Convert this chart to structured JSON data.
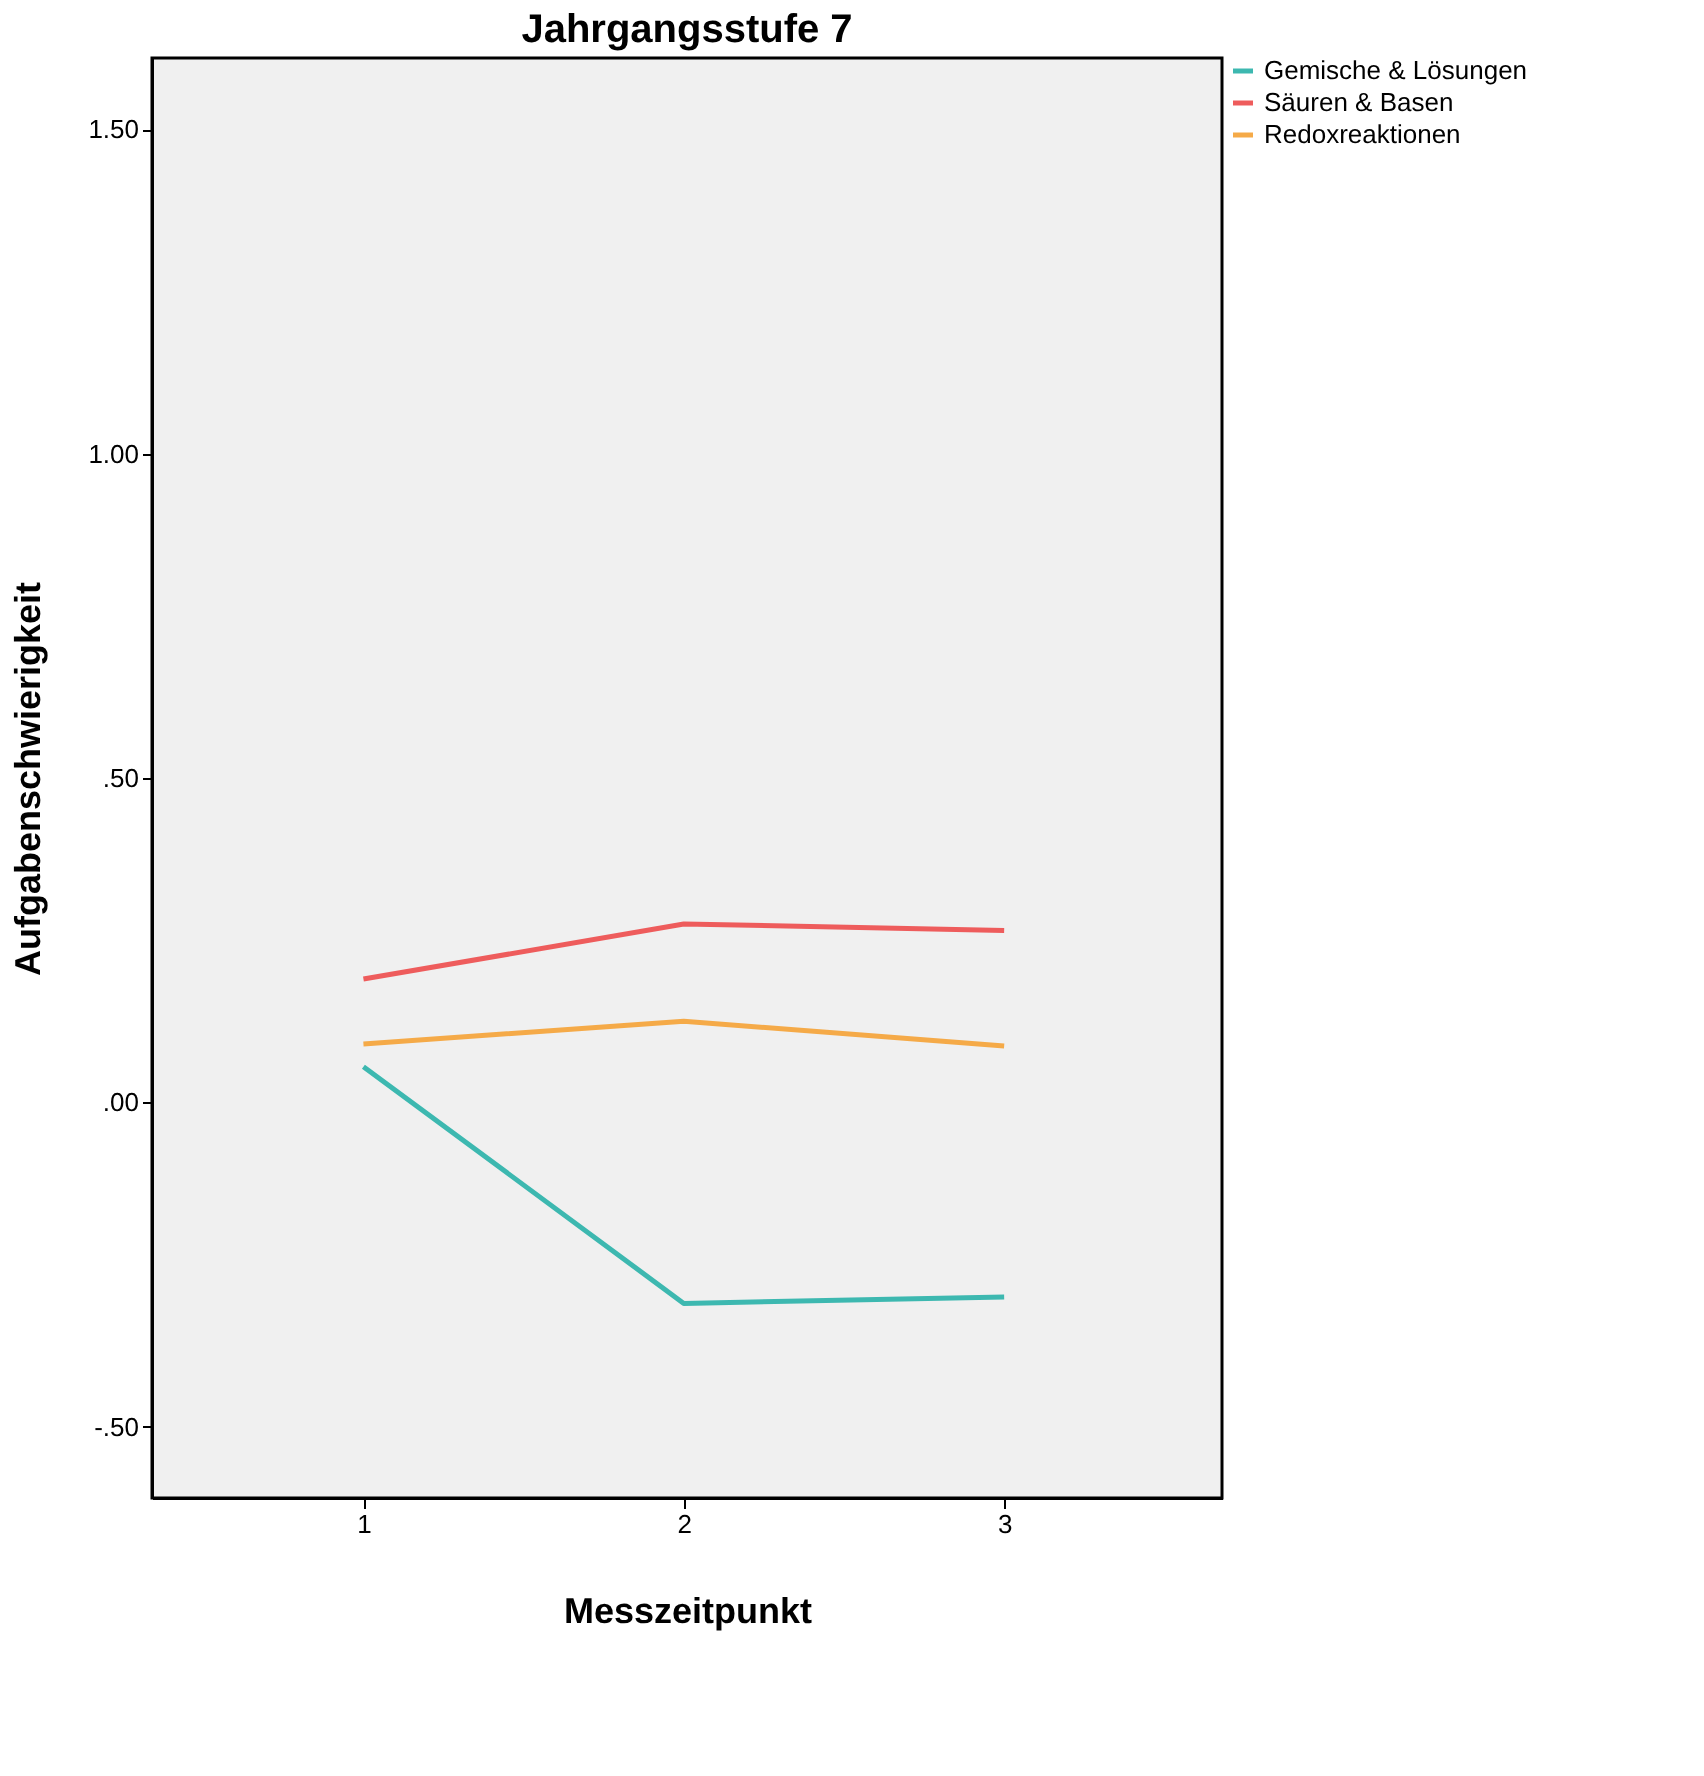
{
  "chart_data": {
    "type": "line",
    "title": "Jahrgangsstufe 7",
    "xlabel": "Messzeitpunkt",
    "ylabel": "Aufgabenschwierigkeit",
    "x": [
      1,
      2,
      3
    ],
    "series": [
      {
        "name": "Gemische & Lösungen",
        "color": "#3db8b0",
        "values": [
          0.055,
          -0.31,
          -0.3
        ]
      },
      {
        "name": "Säuren & Basen",
        "color": "#ee5c5c",
        "values": [
          0.19,
          0.275,
          0.265
        ]
      },
      {
        "name": "Redoxreaktionen",
        "color": "#f5aa48",
        "values": [
          0.09,
          0.125,
          0.087
        ]
      }
    ],
    "xlim": [
      0.34,
      3.68
    ],
    "ylim": [
      -0.61,
      1.61
    ],
    "xticks": [
      1,
      2,
      3
    ],
    "yticks": [
      {
        "value": -0.5,
        "label": "-.50"
      },
      {
        "value": 0,
        "label": ".00"
      },
      {
        "value": 0.5,
        "label": ".50"
      },
      {
        "value": 1.0,
        "label": "1.00"
      },
      {
        "value": 1.5,
        "label": "1.50"
      }
    ],
    "grid": false,
    "legend": "right",
    "marker": "none",
    "line_style": "solid"
  }
}
